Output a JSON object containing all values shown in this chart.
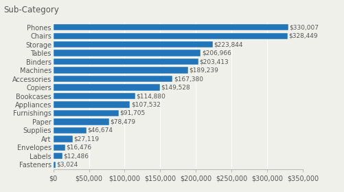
{
  "title": "Sub-Category",
  "categories": [
    "Fasteners",
    "Labels",
    "Envelopes",
    "Art",
    "Supplies",
    "Paper",
    "Furnishings",
    "Appliances",
    "Bookcases",
    "Copiers",
    "Accessories",
    "Machines",
    "Binders",
    "Tables",
    "Storage",
    "Chairs",
    "Phones"
  ],
  "values": [
    3024,
    12486,
    16476,
    27119,
    46674,
    78479,
    91705,
    107532,
    114880,
    149528,
    167380,
    189239,
    203413,
    206966,
    223844,
    328449,
    330007
  ],
  "labels": [
    "$3,024",
    "$12,486",
    "$16,476",
    "$27,119",
    "$46,674",
    "$78,479",
    "$91,705",
    "$107,532",
    "$114,880",
    "$149,528",
    "$167,380",
    "$189,239",
    "$203,413",
    "$206,966",
    "$223,844",
    "$328,449",
    "$330,007"
  ],
  "bar_color": "#2275b8",
  "background_color": "#f0f0eb",
  "text_color": "#555555",
  "xlim": [
    0,
    350000
  ],
  "xticks": [
    0,
    50000,
    100000,
    150000,
    200000,
    250000,
    300000,
    350000
  ],
  "xtick_labels": [
    "$0",
    "$50,000",
    "$100,000",
    "$150,000",
    "$200,000",
    "$250,000",
    "$300,000",
    "$350,000"
  ],
  "title_fontsize": 8.5,
  "label_fontsize": 6.5,
  "tick_fontsize": 7,
  "bar_height": 0.75
}
